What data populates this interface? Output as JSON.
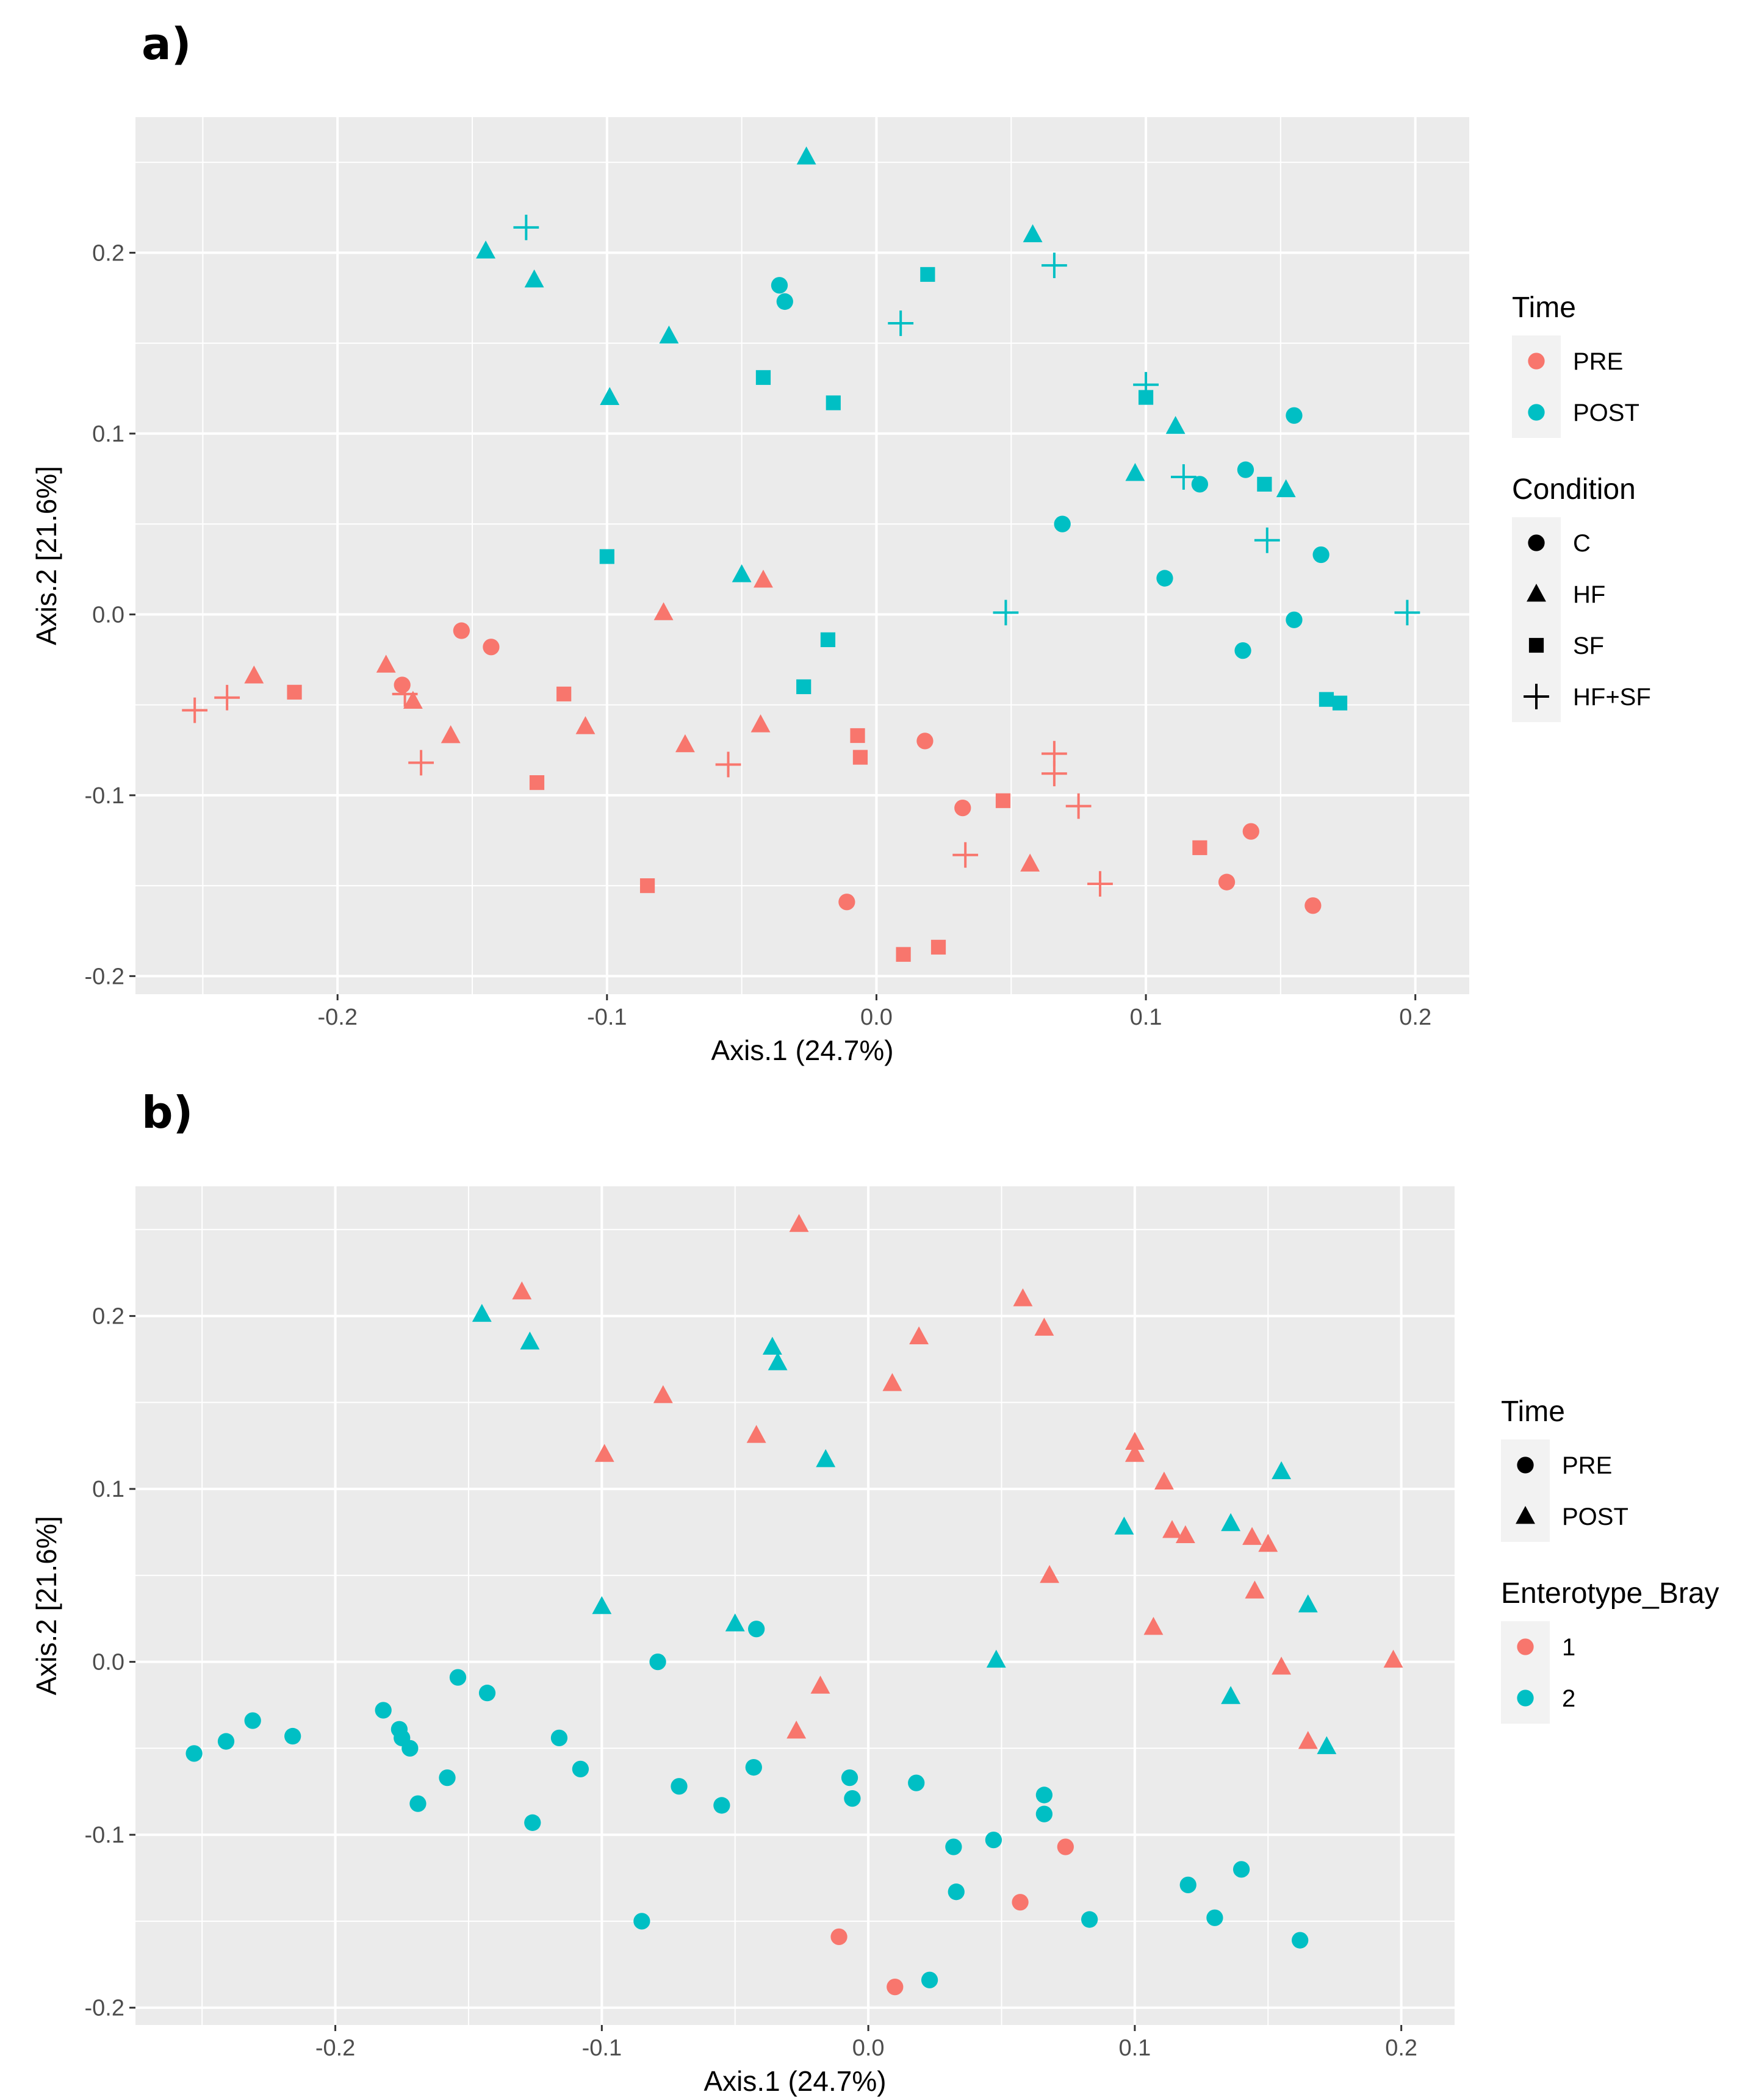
{
  "colors": {
    "red": "#F8766D",
    "teal": "#00BFC4",
    "panel_bg": "#EBEBEB",
    "legend_key_bg": "#F2F2F2"
  },
  "chart_data": [
    {
      "panel_label": "a)",
      "type": "scatter",
      "xlabel": "Axis.1 (24.7%)",
      "ylabel": "Axis.2   [21.6%]",
      "xlim": [
        -0.275,
        0.22
      ],
      "ylim": [
        -0.21,
        0.275
      ],
      "x_ticks": [
        {
          "value": -0.2,
          "label": "-0.2"
        },
        {
          "value": -0.1,
          "label": "-0.1"
        },
        {
          "value": 0.0,
          "label": "0.0"
        },
        {
          "value": 0.1,
          "label": "0.1"
        },
        {
          "value": 0.2,
          "label": "0.2"
        }
      ],
      "y_ticks": [
        {
          "value": 0.2,
          "label": "0.2"
        },
        {
          "value": 0.1,
          "label": "0.1"
        },
        {
          "value": 0.0,
          "label": "0.0"
        },
        {
          "value": -0.1,
          "label": "-0.1"
        },
        {
          "value": -0.2,
          "label": "-0.2"
        }
      ],
      "legends": [
        {
          "title": "Time",
          "items": [
            {
              "label": "PRE",
              "shape": "circle",
              "color": "#F8766D"
            },
            {
              "label": "POST",
              "shape": "circle",
              "color": "#00BFC4"
            }
          ]
        },
        {
          "title": "Condition",
          "items": [
            {
              "label": "C",
              "shape": "circle",
              "color": "#000000"
            },
            {
              "label": "HF",
              "shape": "triangle",
              "color": "#000000"
            },
            {
              "label": "SF",
              "shape": "square",
              "color": "#000000"
            },
            {
              "label": "HF+SF",
              "shape": "cross",
              "color": "#000000"
            }
          ]
        }
      ],
      "series": [
        {
          "name": "PRE / C",
          "shape": "circle",
          "color": "#F8766D",
          "points": [
            [
              -0.154,
              -0.009
            ],
            [
              -0.143,
              -0.018
            ],
            [
              -0.176,
              -0.039
            ],
            [
              0.018,
              -0.07
            ],
            [
              0.032,
              -0.107
            ],
            [
              -0.011,
              -0.159
            ],
            [
              0.139,
              -0.12
            ],
            [
              0.13,
              -0.148
            ],
            [
              0.162,
              -0.161
            ]
          ]
        },
        {
          "name": "PRE / HF",
          "shape": "triangle",
          "color": "#F8766D",
          "points": [
            [
              -0.231,
              -0.034
            ],
            [
              -0.182,
              -0.028
            ],
            [
              -0.172,
              -0.048
            ],
            [
              -0.158,
              -0.067
            ],
            [
              -0.108,
              -0.062
            ],
            [
              -0.079,
              0.001
            ],
            [
              -0.071,
              -0.072
            ],
            [
              -0.042,
              0.019
            ],
            [
              -0.043,
              -0.061
            ],
            [
              0.057,
              -0.138
            ]
          ]
        },
        {
          "name": "PRE / SF",
          "shape": "square",
          "color": "#F8766D",
          "points": [
            [
              -0.216,
              -0.043
            ],
            [
              -0.116,
              -0.044
            ],
            [
              -0.126,
              -0.093
            ],
            [
              -0.085,
              -0.15
            ],
            [
              -0.007,
              -0.067
            ],
            [
              -0.006,
              -0.079
            ],
            [
              0.047,
              -0.103
            ],
            [
              0.01,
              -0.188
            ],
            [
              0.023,
              -0.184
            ],
            [
              0.12,
              -0.129
            ]
          ]
        },
        {
          "name": "PRE / HF+SF",
          "shape": "cross",
          "color": "#F8766D",
          "points": [
            [
              -0.253,
              -0.053
            ],
            [
              -0.241,
              -0.046
            ],
            [
              -0.175,
              -0.044
            ],
            [
              -0.169,
              -0.082
            ],
            [
              -0.055,
              -0.083
            ],
            [
              0.033,
              -0.133
            ],
            [
              0.066,
              -0.077
            ],
            [
              0.066,
              -0.088
            ],
            [
              0.075,
              -0.106
            ],
            [
              0.083,
              -0.149
            ]
          ]
        },
        {
          "name": "POST / C",
          "shape": "circle",
          "color": "#00BFC4",
          "points": [
            [
              -0.036,
              0.182
            ],
            [
              -0.034,
              0.173
            ],
            [
              0.069,
              0.05
            ],
            [
              0.12,
              0.072
            ],
            [
              0.137,
              0.08
            ],
            [
              0.155,
              0.11
            ],
            [
              0.107,
              0.02
            ],
            [
              0.165,
              0.033
            ],
            [
              0.155,
              -0.003
            ],
            [
              0.136,
              -0.02
            ]
          ]
        },
        {
          "name": "POST / HF",
          "shape": "triangle",
          "color": "#00BFC4",
          "points": [
            [
              -0.145,
              0.201
            ],
            [
              -0.127,
              0.185
            ],
            [
              -0.077,
              0.154
            ],
            [
              -0.099,
              0.12
            ],
            [
              -0.05,
              0.022
            ],
            [
              -0.026,
              0.253
            ],
            [
              0.058,
              0.21
            ],
            [
              0.096,
              0.078
            ],
            [
              0.111,
              0.104
            ],
            [
              0.152,
              0.069
            ]
          ]
        },
        {
          "name": "POST / SF",
          "shape": "square",
          "color": "#00BFC4",
          "points": [
            [
              -0.042,
              0.131
            ],
            [
              -0.016,
              0.117
            ],
            [
              0.019,
              0.188
            ],
            [
              -0.1,
              0.032
            ],
            [
              -0.018,
              -0.014
            ],
            [
              -0.027,
              -0.04
            ],
            [
              0.1,
              0.12
            ],
            [
              0.144,
              0.072
            ],
            [
              0.167,
              -0.047
            ],
            [
              0.172,
              -0.049
            ]
          ]
        },
        {
          "name": "POST / HF+SF",
          "shape": "cross",
          "color": "#00BFC4",
          "points": [
            [
              -0.13,
              0.214
            ],
            [
              0.066,
              0.193
            ],
            [
              0.009,
              0.161
            ],
            [
              0.1,
              0.127
            ],
            [
              0.114,
              0.076
            ],
            [
              0.145,
              0.041
            ],
            [
              0.048,
              0.001
            ],
            [
              0.197,
              0.001
            ]
          ]
        }
      ]
    },
    {
      "panel_label": "b)",
      "type": "scatter",
      "xlabel": "Axis.1 (24.7%)",
      "ylabel": "Axis.2   [21.6%]",
      "xlim": [
        -0.275,
        0.22
      ],
      "ylim": [
        -0.21,
        0.275
      ],
      "x_ticks": [
        {
          "value": -0.2,
          "label": "-0.2"
        },
        {
          "value": -0.1,
          "label": "-0.1"
        },
        {
          "value": 0.0,
          "label": "0.0"
        },
        {
          "value": 0.1,
          "label": "0.1"
        },
        {
          "value": 0.2,
          "label": "0.2"
        }
      ],
      "y_ticks": [
        {
          "value": 0.2,
          "label": "0.2"
        },
        {
          "value": 0.1,
          "label": "0.1"
        },
        {
          "value": 0.0,
          "label": "0.0"
        },
        {
          "value": -0.1,
          "label": "-0.1"
        },
        {
          "value": -0.2,
          "label": "-0.2"
        }
      ],
      "legends": [
        {
          "title": "Time",
          "items": [
            {
              "label": "PRE",
              "shape": "circle",
              "color": "#000000"
            },
            {
              "label": "POST",
              "shape": "triangle",
              "color": "#000000"
            }
          ]
        },
        {
          "title": "Enterotype_Bray",
          "items": [
            {
              "label": "1",
              "shape": "circle",
              "color": "#F8766D"
            },
            {
              "label": "2",
              "shape": "circle",
              "color": "#00BFC4"
            }
          ]
        }
      ],
      "series": [
        {
          "name": "PRE / 1",
          "shape": "circle",
          "color": "#F8766D",
          "points": [
            [
              0.074,
              -0.107
            ],
            [
              0.057,
              -0.139
            ],
            [
              -0.011,
              -0.159
            ],
            [
              0.01,
              -0.188
            ]
          ]
        },
        {
          "name": "PRE / 2",
          "shape": "circle",
          "color": "#00BFC4",
          "points": [
            [
              -0.253,
              -0.053
            ],
            [
              -0.241,
              -0.046
            ],
            [
              -0.231,
              -0.034
            ],
            [
              -0.216,
              -0.043
            ],
            [
              -0.182,
              -0.028
            ],
            [
              -0.176,
              -0.039
            ],
            [
              -0.175,
              -0.044
            ],
            [
              -0.172,
              -0.05
            ],
            [
              -0.169,
              -0.082
            ],
            [
              -0.158,
              -0.067
            ],
            [
              -0.154,
              -0.009
            ],
            [
              -0.143,
              -0.018
            ],
            [
              -0.126,
              -0.093
            ],
            [
              -0.116,
              -0.044
            ],
            [
              -0.108,
              -0.062
            ],
            [
              -0.085,
              -0.15
            ],
            [
              -0.079,
              0.0
            ],
            [
              -0.071,
              -0.072
            ],
            [
              -0.055,
              -0.083
            ],
            [
              -0.043,
              -0.061
            ],
            [
              -0.042,
              0.019
            ],
            [
              -0.007,
              -0.067
            ],
            [
              -0.006,
              -0.079
            ],
            [
              0.018,
              -0.07
            ],
            [
              0.032,
              -0.107
            ],
            [
              0.033,
              -0.133
            ],
            [
              0.047,
              -0.103
            ],
            [
              0.066,
              -0.077
            ],
            [
              0.066,
              -0.088
            ],
            [
              0.083,
              -0.149
            ],
            [
              0.12,
              -0.129
            ],
            [
              0.13,
              -0.148
            ],
            [
              0.14,
              -0.12
            ],
            [
              0.162,
              -0.161
            ],
            [
              0.023,
              -0.184
            ]
          ]
        },
        {
          "name": "POST / 1",
          "shape": "triangle",
          "color": "#F8766D",
          "points": [
            [
              -0.13,
              0.214
            ],
            [
              -0.077,
              0.154
            ],
            [
              -0.099,
              0.12
            ],
            [
              -0.042,
              0.131
            ],
            [
              -0.026,
              0.253
            ],
            [
              0.009,
              0.161
            ],
            [
              0.019,
              0.188
            ],
            [
              0.058,
              0.21
            ],
            [
              0.066,
              0.193
            ],
            [
              0.068,
              0.05
            ],
            [
              0.1,
              0.127
            ],
            [
              0.1,
              0.12
            ],
            [
              0.111,
              0.104
            ],
            [
              0.114,
              0.076
            ],
            [
              0.119,
              0.073
            ],
            [
              0.144,
              0.072
            ],
            [
              0.15,
              0.068
            ],
            [
              0.145,
              0.041
            ],
            [
              0.107,
              0.02
            ],
            [
              0.155,
              -0.003
            ],
            [
              0.197,
              0.001
            ],
            [
              0.165,
              -0.046
            ],
            [
              -0.018,
              -0.014
            ],
            [
              -0.027,
              -0.04
            ]
          ]
        },
        {
          "name": "POST / 2",
          "shape": "triangle",
          "color": "#00BFC4",
          "points": [
            [
              -0.145,
              0.201
            ],
            [
              -0.127,
              0.185
            ],
            [
              -0.036,
              0.182
            ],
            [
              -0.034,
              0.173
            ],
            [
              -0.016,
              0.117
            ],
            [
              -0.1,
              0.032
            ],
            [
              -0.05,
              0.022
            ],
            [
              0.048,
              0.001
            ],
            [
              0.096,
              0.078
            ],
            [
              0.136,
              0.08
            ],
            [
              0.155,
              0.11
            ],
            [
              0.165,
              0.033
            ],
            [
              0.136,
              -0.02
            ],
            [
              0.172,
              -0.049
            ]
          ]
        }
      ]
    }
  ]
}
